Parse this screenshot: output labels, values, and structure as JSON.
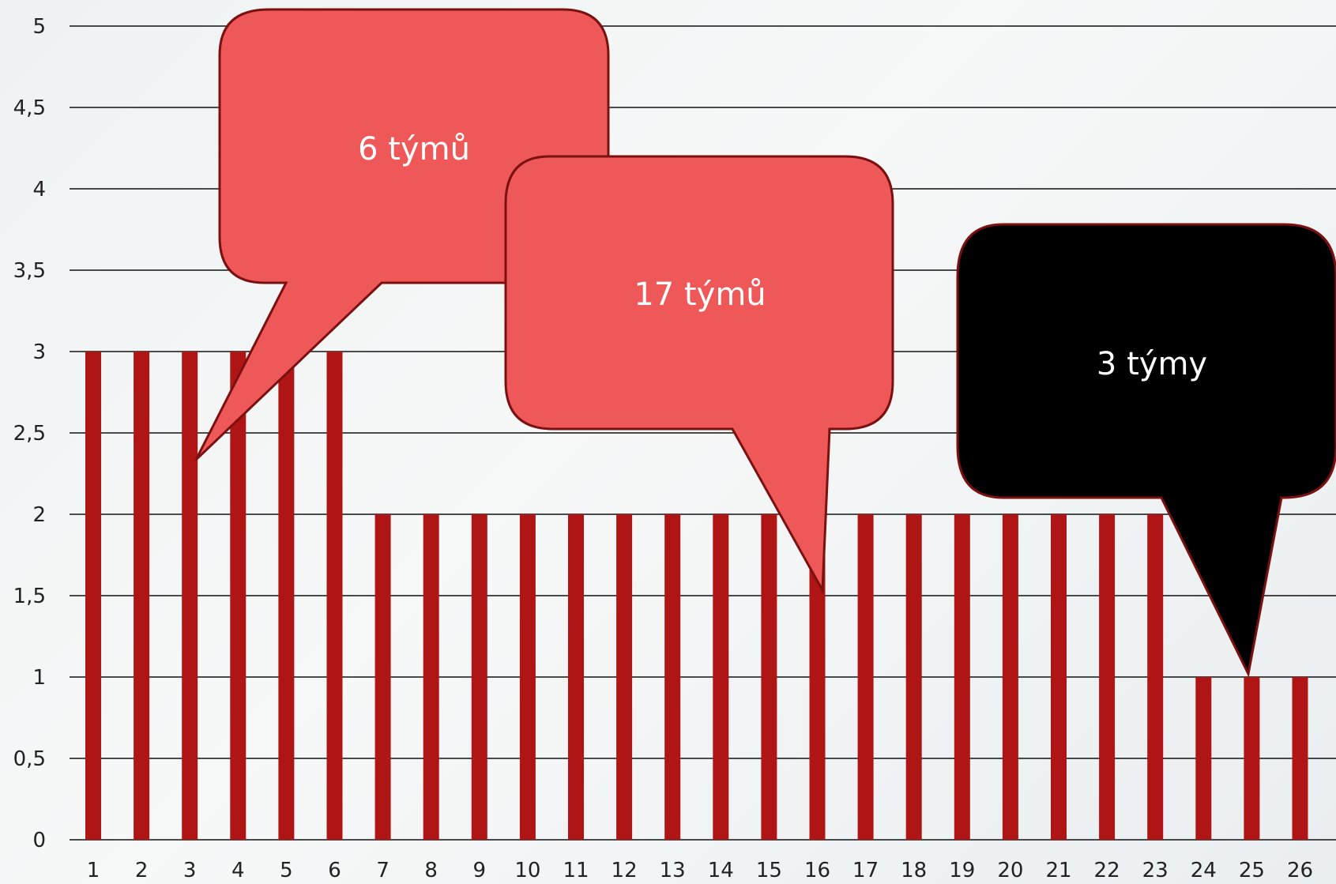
{
  "chart_data": {
    "type": "bar",
    "categories": [
      "1",
      "2",
      "3",
      "4",
      "5",
      "6",
      "7",
      "8",
      "9",
      "10",
      "11",
      "12",
      "13",
      "14",
      "15",
      "16",
      "17",
      "18",
      "19",
      "20",
      "21",
      "22",
      "23",
      "24",
      "25",
      "26"
    ],
    "values": [
      3,
      3,
      3,
      3,
      3,
      3,
      2,
      2,
      2,
      2,
      2,
      2,
      2,
      2,
      2,
      2,
      2,
      2,
      2,
      2,
      2,
      2,
      2,
      1,
      1,
      1
    ],
    "ylim": [
      0,
      5
    ],
    "yticks": [
      "0",
      "0,5",
      "1",
      "1,5",
      "2",
      "2,5",
      "3",
      "3,5",
      "4",
      "4,5",
      "5"
    ],
    "grid": true,
    "bar_color": "#b01515"
  },
  "callouts": [
    {
      "text": "6 týmů",
      "fill": "#ef5858",
      "text_color": "#ffffff",
      "points_to": "3"
    },
    {
      "text": "17 týmů",
      "fill": "#ef5858",
      "text_color": "#ffffff",
      "points_to": "16"
    },
    {
      "text": "3 týmy",
      "fill": "#000000",
      "text_color": "#ffffff",
      "points_to": "25"
    }
  ]
}
